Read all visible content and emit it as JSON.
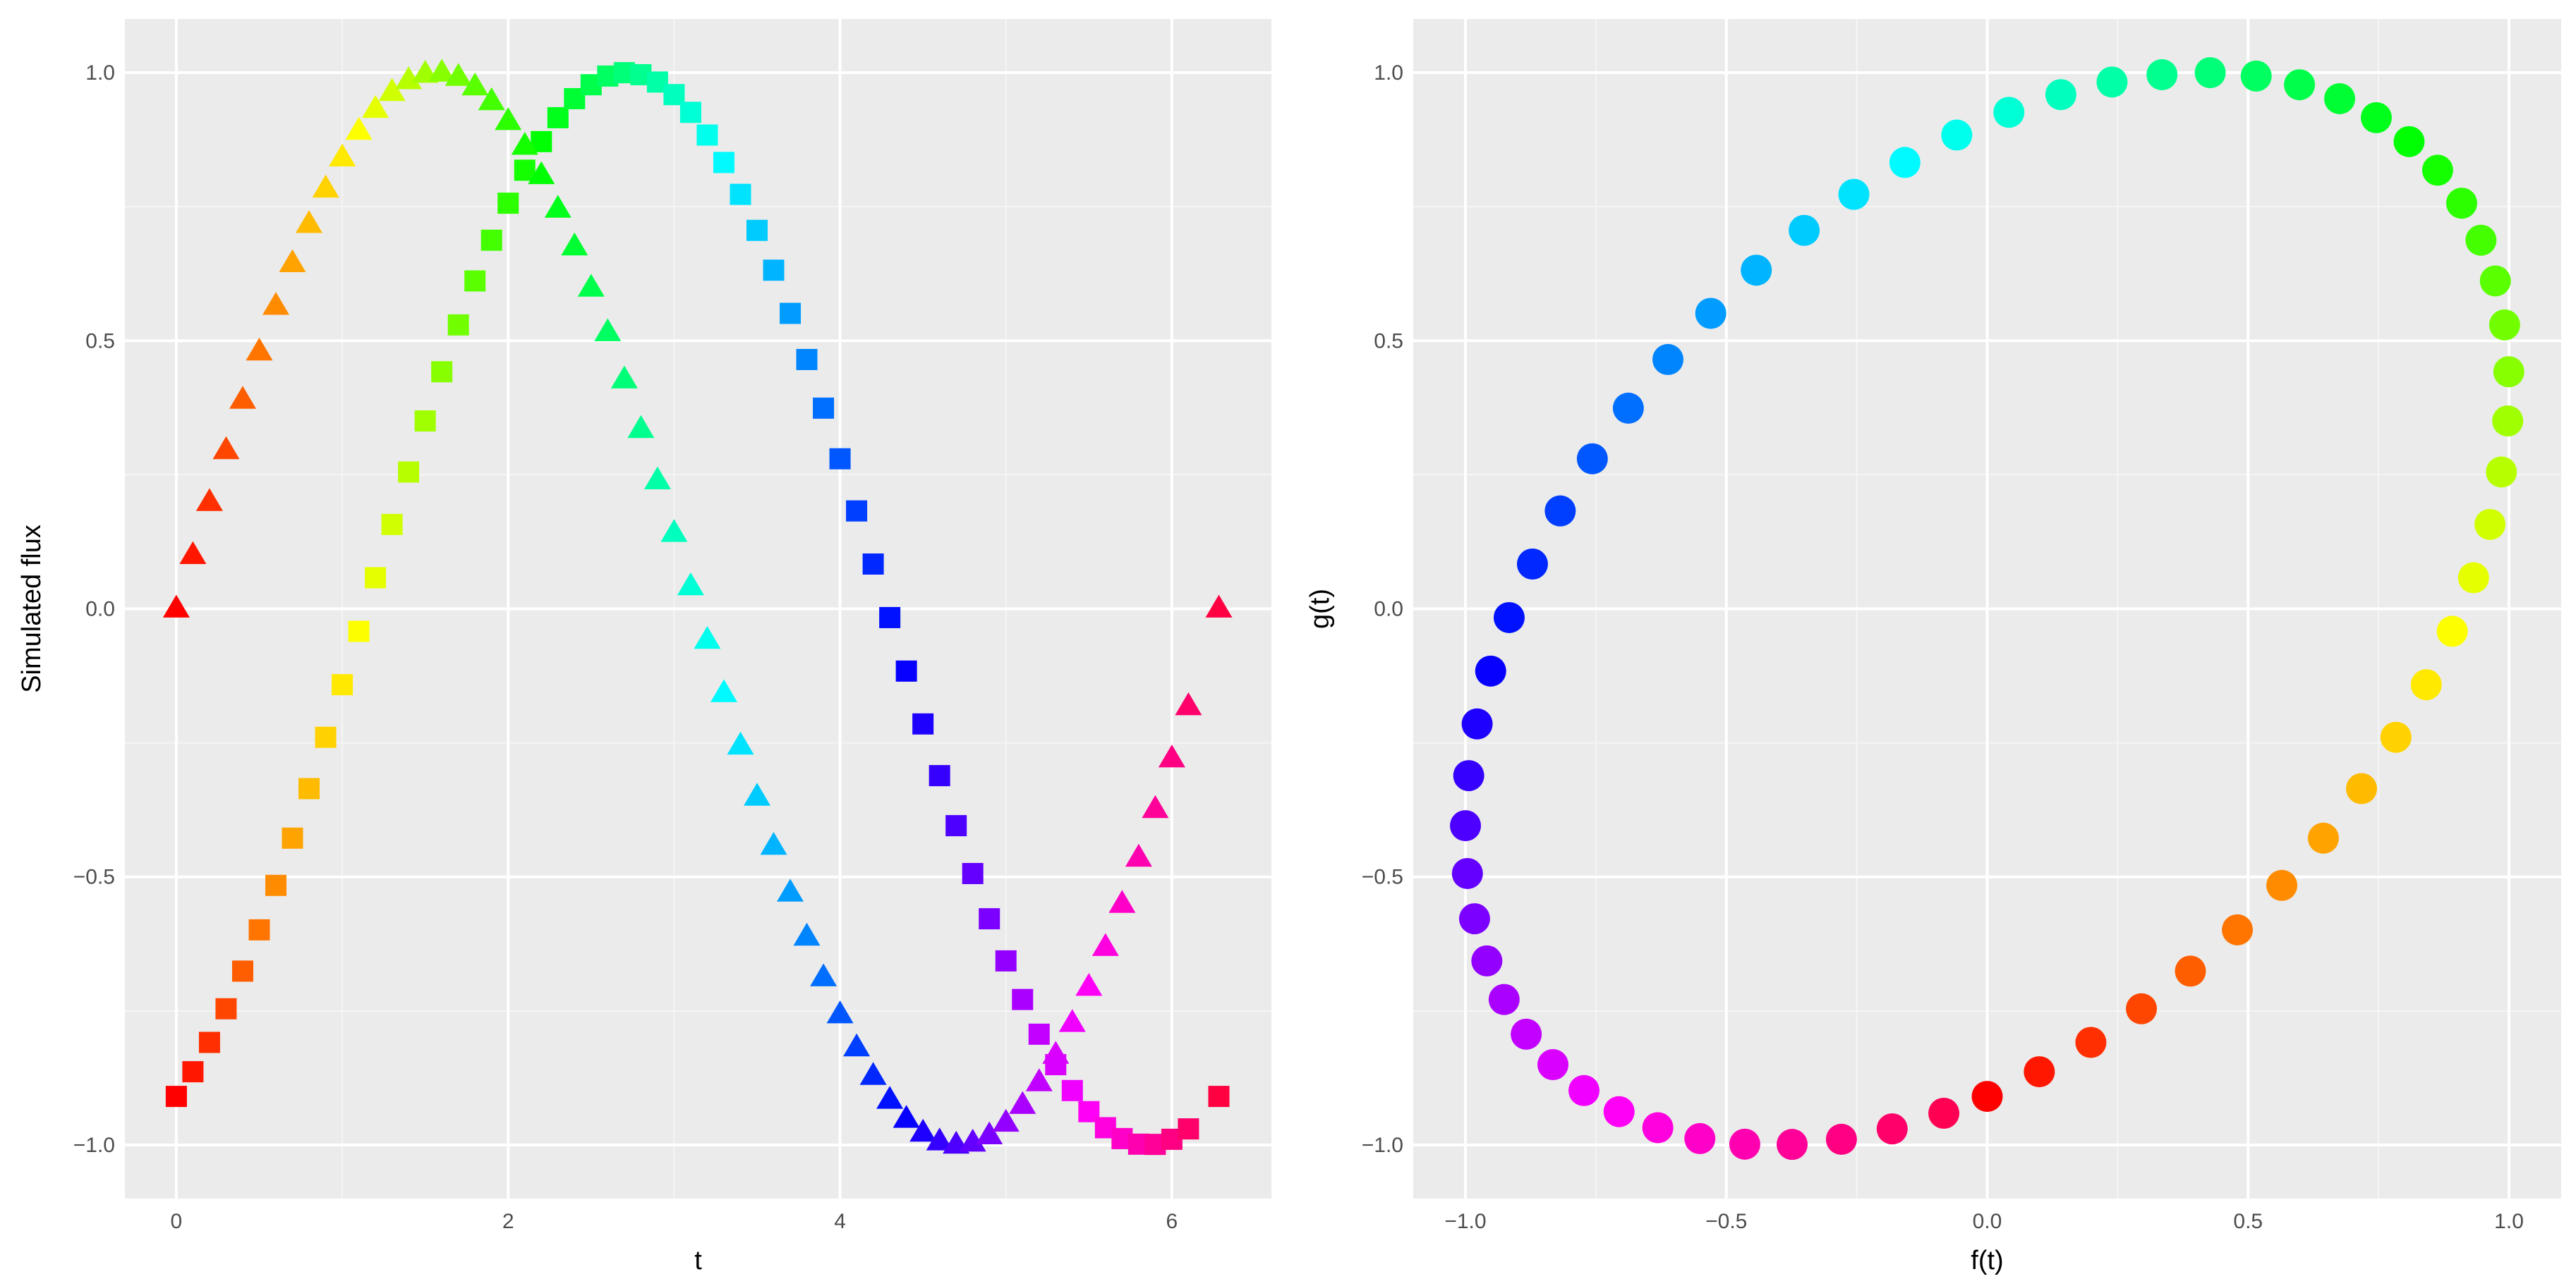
{
  "chart_data": [
    {
      "type": "scatter",
      "xlabel": "t",
      "ylabel": "Simulated flux",
      "xlim": [
        -0.31,
        6.6
      ],
      "ylim": [
        -1.1,
        1.1
      ],
      "xticks": [
        0,
        2,
        4,
        6
      ],
      "yticks": [
        -1.0,
        -0.5,
        0.0,
        0.5,
        1.0
      ],
      "xtick_labels": [
        "0",
        "2",
        "4",
        "6"
      ],
      "ytick_labels": [
        "−1.0",
        "−0.5",
        "0.0",
        "0.5",
        "1.0"
      ],
      "grid": true,
      "legend": "none",
      "color_scale": "rainbow hue mapped to t",
      "series": [
        {
          "marker": "triangle",
          "formula": "sin(t)",
          "t_start": 0,
          "t_step": 0.1,
          "t_count": 63,
          "t_end": 6.283185307,
          "samples": [
            {
              "t": 0.0,
              "y": 0.0
            },
            {
              "t": 0.5,
              "y": 0.479
            },
            {
              "t": 1.0,
              "y": 0.841
            },
            {
              "t": 1.5,
              "y": 0.997
            },
            {
              "t": 2.0,
              "y": 0.909
            },
            {
              "t": 2.5,
              "y": 0.598
            },
            {
              "t": 3.0,
              "y": 0.141
            },
            {
              "t": 3.5,
              "y": -0.351
            },
            {
              "t": 4.0,
              "y": -0.757
            },
            {
              "t": 4.5,
              "y": -0.978
            },
            {
              "t": 5.0,
              "y": -0.959
            },
            {
              "t": 5.5,
              "y": -0.706
            },
            {
              "t": 6.0,
              "y": -0.279
            },
            {
              "t": 6.283,
              "y": 0.0
            }
          ]
        },
        {
          "marker": "square",
          "formula": "sin(t - 1.142)",
          "t_start": 0,
          "t_step": 0.1,
          "t_count": 63,
          "t_end": 6.283185307,
          "samples": [
            {
              "t": 0.0,
              "y": -0.909
            },
            {
              "t": 0.5,
              "y": -0.599
            },
            {
              "t": 1.0,
              "y": -0.142
            },
            {
              "t": 1.5,
              "y": 0.35
            },
            {
              "t": 2.0,
              "y": 0.757
            },
            {
              "t": 2.5,
              "y": 0.978
            },
            {
              "t": 3.0,
              "y": 0.959
            },
            {
              "t": 3.5,
              "y": 0.706
            },
            {
              "t": 4.0,
              "y": 0.279
            },
            {
              "t": 4.5,
              "y": -0.216
            },
            {
              "t": 5.0,
              "y": -0.657
            },
            {
              "t": 5.5,
              "y": -0.938
            },
            {
              "t": 6.0,
              "y": -0.989
            },
            {
              "t": 6.283,
              "y": -0.909
            }
          ]
        }
      ]
    },
    {
      "type": "scatter",
      "xlabel": "f(t)",
      "ylabel": "g(t)",
      "xlim": [
        -1.1,
        1.1
      ],
      "ylim": [
        -1.1,
        1.1
      ],
      "xticks": [
        -1.0,
        -0.5,
        0.0,
        0.5,
        1.0
      ],
      "yticks": [
        -1.0,
        -0.5,
        0.0,
        0.5,
        1.0
      ],
      "xtick_labels": [
        "−1.0",
        "−0.5",
        "0.0",
        "0.5",
        "1.0"
      ],
      "ytick_labels": [
        "−1.0",
        "−0.5",
        "0.0",
        "0.5",
        "1.0"
      ],
      "grid": true,
      "legend": "none",
      "color_scale": "rainbow hue mapped to t",
      "series": [
        {
          "marker": "circle",
          "x_formula": "sin(t)",
          "y_formula": "sin(t - 1.142)",
          "t_start": 0,
          "t_step": 0.1,
          "t_count": 63,
          "samples": [
            {
              "t": 0.0,
              "x": 0.0,
              "y": -0.909
            },
            {
              "t": 1.0,
              "x": 0.841,
              "y": -0.142
            },
            {
              "t": 2.0,
              "x": 0.909,
              "y": 0.757
            },
            {
              "t": 3.0,
              "x": 0.141,
              "y": 0.959
            },
            {
              "t": 4.0,
              "x": -0.757,
              "y": 0.279
            },
            {
              "t": 5.0,
              "x": -0.959,
              "y": -0.657
            },
            {
              "t": 6.0,
              "x": -0.279,
              "y": -0.989
            }
          ]
        }
      ]
    }
  ]
}
